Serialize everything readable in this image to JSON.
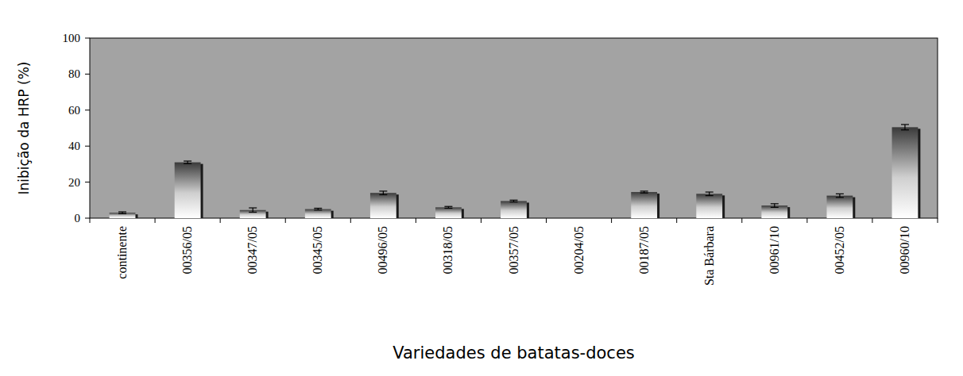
{
  "chart_data": {
    "type": "bar",
    "x_label": "Variedades de batatas-doces",
    "y_label": "Inibição da HRP (%)",
    "categories": [
      "continente",
      "00356/05",
      "00347/05",
      "00345/05",
      "00496/05",
      "00318/05",
      "00357/05",
      "00204/05",
      "00187/05",
      "Sta Bárbara",
      "00961/10",
      "00452/05",
      "00960/10"
    ],
    "values": [
      3,
      31,
      4.5,
      5,
      14,
      6,
      9.5,
      0,
      14.5,
      13.5,
      7,
      12.5,
      50.5
    ],
    "errors": [
      0.5,
      0.7,
      1.2,
      0.5,
      1,
      0.5,
      0.5,
      0,
      0.5,
      1,
      1,
      1,
      1.5
    ],
    "color": "#3a3a3a",
    "ylim": [
      0,
      100
    ],
    "yticks": [
      0,
      20,
      40,
      60,
      80,
      100
    ],
    "grid": false
  }
}
